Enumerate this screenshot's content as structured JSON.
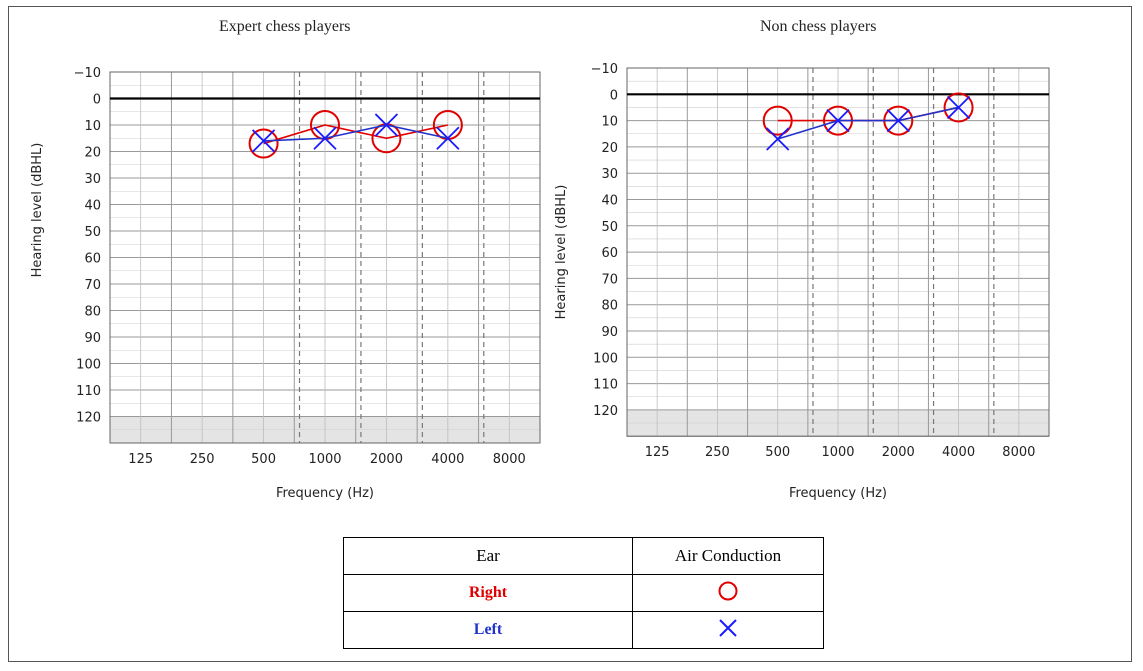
{
  "colors": {
    "right": "#e00000",
    "left": "#1a1aff",
    "left_line": "#2233cc",
    "grid": "#999999",
    "zero_line": "#000000",
    "shade": "#e4e4e4"
  },
  "chart_data": [
    {
      "type": "line",
      "title": "Expert chess players",
      "xlabel": "Frequency (Hz)",
      "ylabel": "Hearing level (dBHL)",
      "x_ticks": [
        "125",
        "250",
        "500",
        "1000",
        "2000",
        "4000",
        "8000"
      ],
      "y_ticks": [
        "−10",
        "0",
        "10",
        "20",
        "30",
        "40",
        "50",
        "60",
        "70",
        "80",
        "90",
        "100",
        "110",
        "120"
      ],
      "ylim": [
        -10,
        130
      ],
      "y_inverted": true,
      "series": [
        {
          "name": "Right",
          "marker": "circle",
          "x": [
            500,
            1000,
            2000,
            4000
          ],
          "values": [
            17,
            10,
            15,
            10
          ]
        },
        {
          "name": "Left",
          "marker": "cross",
          "x": [
            500,
            1000,
            2000,
            4000
          ],
          "values": [
            16,
            15,
            10,
            15
          ]
        }
      ]
    },
    {
      "type": "line",
      "title": "Non chess players",
      "xlabel": "Frequency (Hz)",
      "ylabel": "Hearing level (dBHL)",
      "x_ticks": [
        "125",
        "250",
        "500",
        "1000",
        "2000",
        "4000",
        "8000"
      ],
      "y_ticks": [
        "−10",
        "0",
        "10",
        "20",
        "30",
        "40",
        "50",
        "60",
        "70",
        "80",
        "90",
        "100",
        "110",
        "120"
      ],
      "ylim": [
        -10,
        130
      ],
      "y_inverted": true,
      "series": [
        {
          "name": "Right",
          "marker": "circle",
          "x": [
            500,
            1000,
            2000,
            4000
          ],
          "values": [
            10,
            10,
            10,
            5
          ]
        },
        {
          "name": "Left",
          "marker": "cross",
          "x": [
            500,
            1000,
            2000,
            4000
          ],
          "values": [
            17,
            10,
            10,
            5
          ]
        }
      ]
    }
  ],
  "legend": {
    "header_ear": "Ear",
    "header_air": "Air Conduction",
    "right_label": "Right",
    "left_label": "Left",
    "right_symbol_icon": "circle-icon",
    "left_symbol_icon": "cross-icon"
  }
}
